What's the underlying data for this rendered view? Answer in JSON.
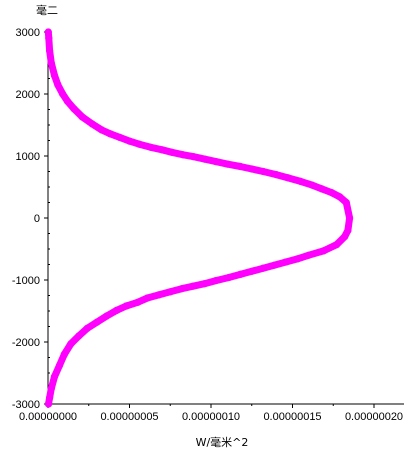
{
  "chart_data": {
    "type": "line",
    "title": "",
    "xlabel": "W/毫米^2",
    "ylabel": "毫二",
    "xlim": [
      0,
      2e-07
    ],
    "ylim": [
      -3000,
      3000
    ],
    "grid": false,
    "legend": "none",
    "series_color": "#ff00ff",
    "x_ticks": [
      0,
      5e-08,
      1e-07,
      1.5e-07,
      2e-07
    ],
    "x_tick_labels": [
      "0.00000000",
      "0.00000005",
      "0.00000010",
      "0.00000015",
      "0.00000020"
    ],
    "y_ticks": [
      -3000,
      -2000,
      -1000,
      0,
      1000,
      2000,
      3000
    ],
    "y_tick_labels": [
      "-3000",
      "-2000",
      "-1000",
      "0",
      "1000",
      "2000",
      "3000"
    ],
    "series": [
      {
        "x": [
          2e-10,
          5e-10,
          1e-09,
          2e-09,
          4e-09,
          6e-09,
          9e-09,
          1.2e-08,
          1.6e-08,
          2.1e-08,
          2.7e-08,
          3.3e-08,
          3.8e-08,
          4.4e-08,
          5e-08,
          5.6e-08,
          6.3e-08,
          7e-08,
          7.6e-08,
          8.3e-08,
          8.9e-08,
          9.6e-08,
          1.03e-07,
          1.1e-07,
          1.18e-07,
          1.25e-07,
          1.32e-07,
          1.4e-07,
          1.47e-07,
          1.55e-07,
          1.62e-07,
          1.68e-07,
          1.74e-07,
          1.79e-07,
          1.83e-07,
          1.85e-07,
          1.84e-07,
          1.82e-07,
          1.77e-07,
          1.69e-07,
          1.6e-07,
          1.53e-07,
          1.46e-07,
          1.39e-07,
          1.32e-07,
          1.25e-07,
          1.18e-07,
          1.11e-07,
          1.03e-07,
          9.6e-08,
          8.9e-08,
          8.2e-08,
          7.5e-08,
          6.8e-08,
          6.1e-08,
          5.5e-08,
          4.8e-08,
          4.2e-08,
          3.6e-08,
          3e-08,
          2.4e-08,
          1.9e-08,
          1.4e-08,
          1e-08,
          7e-09,
          4e-09,
          2e-09,
          1e-09,
          3e-10
        ],
        "y": [
          3000,
          2900,
          2700,
          2500,
          2300,
          2150,
          2000,
          1880,
          1760,
          1630,
          1520,
          1420,
          1360,
          1300,
          1240,
          1190,
          1140,
          1100,
          1060,
          1020,
          990,
          950,
          910,
          870,
          830,
          790,
          750,
          700,
          650,
          590,
          530,
          470,
          410,
          340,
          250,
          0,
          -200,
          -300,
          -430,
          -530,
          -600,
          -660,
          -710,
          -760,
          -810,
          -860,
          -910,
          -960,
          -1010,
          -1060,
          -1100,
          -1140,
          -1190,
          -1240,
          -1290,
          -1360,
          -1420,
          -1490,
          -1580,
          -1680,
          -1780,
          -1900,
          -2030,
          -2200,
          -2380,
          -2560,
          -2750,
          -2900,
          -3000
        ]
      }
    ]
  }
}
